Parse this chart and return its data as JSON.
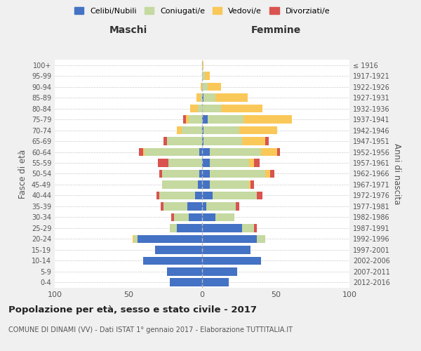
{
  "age_groups": [
    "100+",
    "95-99",
    "90-94",
    "85-89",
    "80-84",
    "75-79",
    "70-74",
    "65-69",
    "60-64",
    "55-59",
    "50-54",
    "45-49",
    "40-44",
    "35-39",
    "30-34",
    "25-29",
    "20-24",
    "15-19",
    "10-14",
    "5-9",
    "0-4"
  ],
  "birth_years": [
    "≤ 1916",
    "1917-1921",
    "1922-1926",
    "1927-1931",
    "1932-1936",
    "1937-1941",
    "1942-1946",
    "1947-1951",
    "1952-1956",
    "1957-1961",
    "1962-1966",
    "1967-1971",
    "1972-1976",
    "1977-1981",
    "1982-1986",
    "1987-1991",
    "1992-1996",
    "1997-2001",
    "2002-2006",
    "2007-2011",
    "2012-2016"
  ],
  "male_celibe": [
    0,
    0,
    0,
    0,
    0,
    0,
    0,
    0,
    2,
    0,
    2,
    3,
    5,
    10,
    9,
    17,
    44,
    32,
    40,
    24,
    22
  ],
  "male_coniugato": [
    0,
    0,
    0,
    1,
    3,
    9,
    14,
    24,
    37,
    23,
    25,
    24,
    24,
    16,
    10,
    5,
    2,
    0,
    0,
    0,
    0
  ],
  "male_vedovo": [
    0,
    0,
    1,
    3,
    5,
    2,
    3,
    0,
    1,
    0,
    0,
    0,
    0,
    0,
    0,
    0,
    1,
    0,
    0,
    0,
    0
  ],
  "male_divorziato": [
    0,
    0,
    0,
    0,
    0,
    2,
    0,
    2,
    3,
    7,
    2,
    0,
    2,
    2,
    2,
    0,
    0,
    0,
    0,
    0,
    0
  ],
  "female_celibe": [
    0,
    0,
    0,
    1,
    0,
    4,
    1,
    1,
    5,
    5,
    5,
    5,
    7,
    3,
    9,
    27,
    37,
    33,
    40,
    24,
    18
  ],
  "female_coniugato": [
    0,
    2,
    4,
    8,
    13,
    24,
    24,
    26,
    35,
    27,
    38,
    27,
    30,
    20,
    13,
    8,
    6,
    0,
    0,
    0,
    0
  ],
  "female_vedovo": [
    1,
    3,
    9,
    22,
    28,
    33,
    26,
    16,
    11,
    3,
    3,
    1,
    0,
    0,
    0,
    0,
    0,
    0,
    0,
    0,
    0
  ],
  "female_divorziato": [
    0,
    0,
    0,
    0,
    0,
    0,
    0,
    2,
    2,
    4,
    3,
    2,
    4,
    2,
    0,
    2,
    0,
    0,
    0,
    0,
    0
  ],
  "color_celibe": "#4472c4",
  "color_coniugato": "#c5d9a0",
  "color_vedovo": "#fac858",
  "color_divorziato": "#d9534f",
  "title": "Popolazione per età, sesso e stato civile - 2017",
  "subtitle": "COMUNE DI DINAMI (VV) - Dati ISTAT 1° gennaio 2017 - Elaborazione TUTTITALIA.IT",
  "xlabel_left": "Maschi",
  "xlabel_right": "Femmine",
  "ylabel_left": "Fasce di età",
  "ylabel_right": "Anni di nascita",
  "xlim": 100,
  "background_color": "#f0f0f0",
  "plot_bg_color": "#ffffff"
}
